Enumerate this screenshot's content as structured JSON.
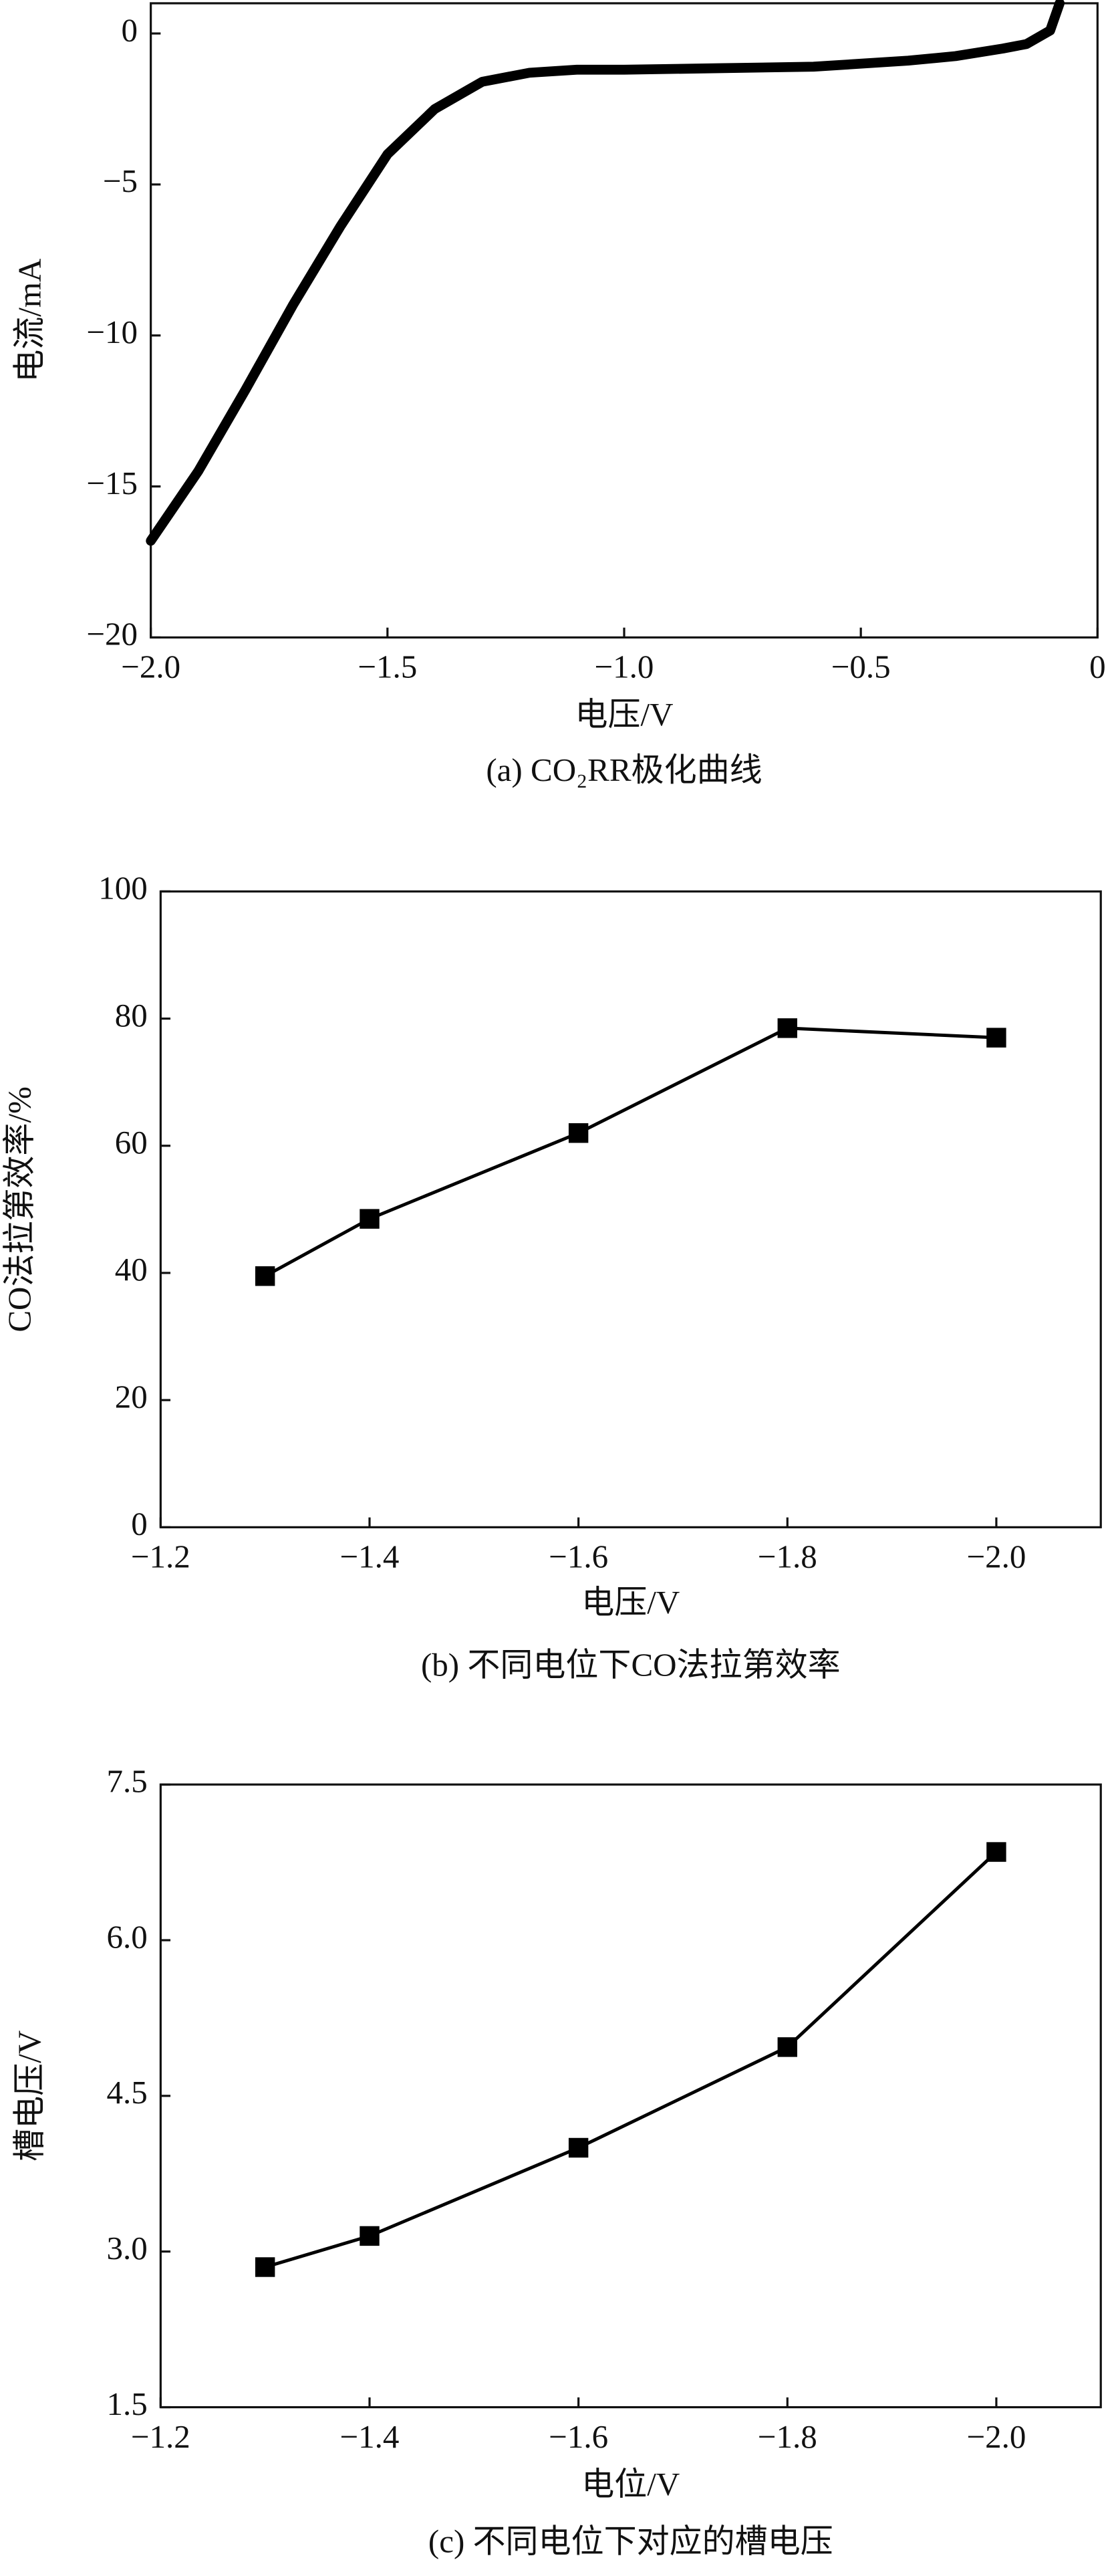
{
  "chart_data": [
    {
      "type": "line",
      "y_label": "电流/mA",
      "x_label": "电压/V",
      "caption": "(a) CO₂RR极化曲线",
      "color": "#000000",
      "x": [
        -2.0,
        -1.9,
        -1.8,
        -1.7,
        -1.6,
        -1.5,
        -1.4,
        -1.3,
        -1.2,
        -1.1,
        -1.0,
        -0.8,
        -0.6,
        -0.4,
        -0.3,
        -0.2,
        -0.15,
        -0.1,
        -0.08
      ],
      "values": [
        -16.8,
        -14.5,
        -11.8,
        -9.0,
        -6.4,
        -4.0,
        -2.5,
        -1.6,
        -1.3,
        -1.2,
        -1.2,
        -1.15,
        -1.1,
        -0.9,
        -0.75,
        -0.5,
        -0.35,
        0.1,
        1.0
      ],
      "xlim": [
        -2.0,
        0
      ],
      "xticks": [
        {
          "value": -2.0,
          "label": "−2.0"
        },
        {
          "value": -1.5,
          "label": "−1.5"
        },
        {
          "value": -1.0,
          "label": "−1.0"
        },
        {
          "value": -0.5,
          "label": "−0.5"
        },
        0
      ],
      "ylim": [
        -20,
        1
      ],
      "yticks": [
        0,
        {
          "value": -5,
          "label": "−5"
        },
        {
          "value": -10,
          "label": "−10"
        },
        {
          "value": -15,
          "label": "−15"
        },
        {
          "value": -20,
          "label": "−20"
        }
      ]
    },
    {
      "type": "line",
      "marker": "square",
      "y_label": "CO法拉第效率/%",
      "x_label": "电压/V",
      "caption": "(b) 不同电位下CO法拉第效率",
      "color": "#000000",
      "x": [
        -1.3,
        -1.4,
        -1.6,
        -1.8,
        -2.0
      ],
      "values": [
        39.5,
        48.5,
        62,
        78.5,
        77
      ],
      "xlim": [
        -1.2,
        -2.1
      ],
      "xticks": [
        {
          "value": -1.2,
          "label": "−1.2"
        },
        {
          "value": -1.4,
          "label": "−1.4"
        },
        {
          "value": -1.6,
          "label": "−1.6"
        },
        {
          "value": -1.8,
          "label": "−1.8"
        },
        {
          "value": -2.0,
          "label": "−2.0"
        }
      ],
      "ylim": [
        0,
        100
      ],
      "yticks": [
        0,
        20,
        40,
        60,
        80,
        100
      ]
    },
    {
      "type": "line",
      "marker": "square",
      "y_label": "槽电压/V",
      "x_label": "电位/V",
      "caption": "(c) 不同电位下对应的槽电压",
      "color": "#000000",
      "x": [
        -1.3,
        -1.4,
        -1.6,
        -1.8,
        -2.0
      ],
      "values": [
        2.85,
        3.15,
        4.0,
        4.97,
        6.85
      ],
      "xlim": [
        -1.2,
        -2.1
      ],
      "xticks": [
        {
          "value": -1.2,
          "label": "−1.2"
        },
        {
          "value": -1.4,
          "label": "−1.4"
        },
        {
          "value": -1.6,
          "label": "−1.6"
        },
        {
          "value": -1.8,
          "label": "−1.8"
        },
        {
          "value": -2.0,
          "label": "−2.0"
        }
      ],
      "ylim": [
        1.5,
        7.5
      ],
      "yticks": [
        1.5,
        {
          "value": 3.0,
          "label": "3.0"
        },
        4.5,
        {
          "value": 6.0,
          "label": "6.0"
        },
        7.5
      ]
    }
  ]
}
